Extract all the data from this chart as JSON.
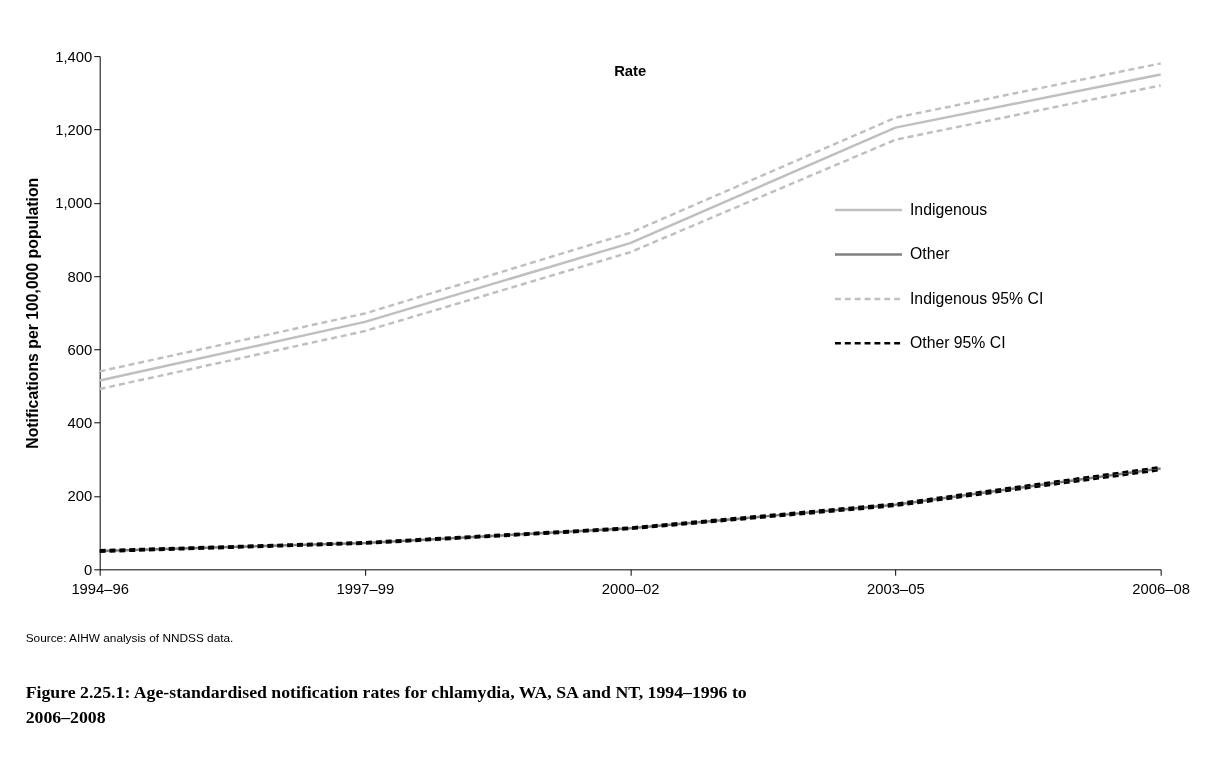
{
  "chart_data": {
    "type": "line",
    "title": "Rate",
    "ylabel": "Notifications per 100,000 population",
    "categories": [
      "1994–96",
      "1997–99",
      "2000–02",
      "2003–05",
      "2006–08"
    ],
    "series": [
      {
        "name": "Indigenous",
        "color": "#bfbfbf",
        "line_style": "solid",
        "values": [
          515,
          675,
          890,
          1205,
          1350
        ]
      },
      {
        "name": "Other",
        "color": "#808080",
        "line_style": "solid",
        "values": [
          50,
          72,
          112,
          176,
          275
        ]
      },
      {
        "name": "Indigenous 95% CI",
        "color": "#bfbfbf",
        "line_style": "dashed",
        "values": [
          540,
          698,
          918,
          1232,
          1380
        ]
      },
      {
        "color": "#bfbfbf",
        "line_style": "dashed",
        "values": [
          492,
          650,
          865,
          1172,
          1320
        ]
      },
      {
        "name": "Other 95% CI",
        "color": "#000000",
        "line_style": "dashed",
        "values": [
          52,
          74,
          114,
          179,
          279
        ]
      },
      {
        "color": "#000000",
        "line_style": "dashed",
        "values": [
          48,
          70,
          110,
          173,
          271
        ]
      }
    ],
    "ylim": [
      0,
      1400
    ],
    "yticks": [
      0,
      200,
      400,
      600,
      800,
      {
        "value": 1000,
        "label": "1,000"
      },
      {
        "value": 1200,
        "label": "1,200"
      },
      {
        "value": 1400,
        "label": "1,400"
      }
    ],
    "grid": false,
    "legend": "right",
    "annotations": [
      "Source: AIHW analysis of NNDSS data.",
      "Figure 2.25.1: Age-standardised notification rates for chlamydia, WA, SA and NT, 1994–1996 to 2006–2008"
    ]
  }
}
